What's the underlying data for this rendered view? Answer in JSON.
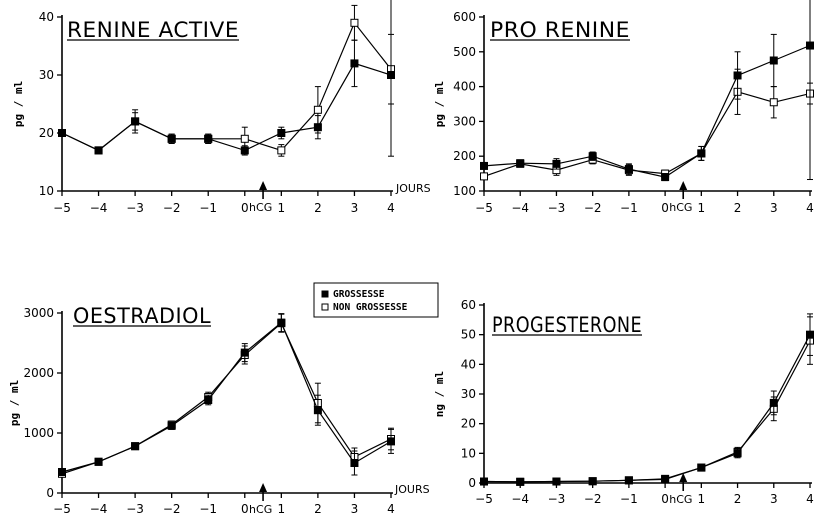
{
  "legend": {
    "entries": [
      {
        "label": "GROSSESSE",
        "marker": "filled-square"
      },
      {
        "label": "NON GROSSESSE",
        "marker": "open-square"
      }
    ]
  },
  "chart_data": [
    {
      "type": "line",
      "title": "RENINE ACTIVE",
      "ylabel": "pg / ml",
      "xlabel": "JOURS",
      "marker_label": "hCG",
      "marker_x": 0.5,
      "x": [
        -5,
        -4,
        -3,
        -2,
        -1,
        0,
        1,
        2,
        3,
        4
      ],
      "xticks": [
        -5,
        -4,
        -3,
        -2,
        -1,
        0,
        1,
        2,
        3,
        4
      ],
      "yticks": [
        10,
        20,
        30,
        40
      ],
      "ylim": [
        10,
        40
      ],
      "xlim": [
        -5,
        4
      ],
      "series": [
        {
          "name": "GROSSESSE",
          "marker": "filled",
          "values": [
            20,
            17,
            22,
            19,
            19,
            17,
            20,
            21,
            32,
            30
          ],
          "errors": [
            0,
            0,
            1.5,
            0.8,
            0.8,
            0.8,
            1,
            2,
            4,
            14
          ]
        },
        {
          "name": "NON GROSSESSE",
          "marker": "open",
          "values": [
            20,
            17,
            22,
            19,
            19,
            19,
            17,
            24,
            39,
            31
          ],
          "errors": [
            0,
            0,
            2,
            0.8,
            0.8,
            2,
            1,
            4,
            3,
            6
          ]
        }
      ]
    },
    {
      "type": "line",
      "title": "PRO RENINE",
      "ylabel": "pg / ml",
      "xlabel": "",
      "marker_label": "hCG",
      "marker_x": 0.5,
      "x": [
        -5,
        -4,
        -3,
        -2,
        -1,
        0,
        1,
        2,
        3,
        4
      ],
      "xticks": [
        -5,
        -4,
        -3,
        -2,
        -1,
        0,
        1,
        2,
        3,
        4
      ],
      "yticks": [
        100,
        200,
        300,
        400,
        500,
        600
      ],
      "ylim": [
        100,
        600
      ],
      "xlim": [
        -5,
        4
      ],
      "series": [
        {
          "name": "GROSSESSE",
          "marker": "filled",
          "values": [
            172,
            180,
            178,
            200,
            163,
            140,
            208,
            432,
            475,
            518
          ],
          "errors": [
            0,
            8,
            15,
            12,
            15,
            10,
            20,
            68,
            75,
            385
          ]
        },
        {
          "name": "NON GROSSESSE",
          "marker": "open",
          "values": [
            142,
            178,
            160,
            190,
            160,
            150,
            208,
            385,
            355,
            380
          ],
          "errors": [
            0,
            8,
            15,
            12,
            15,
            10,
            20,
            65,
            45,
            30
          ]
        }
      ]
    },
    {
      "type": "line",
      "title": "OESTRADIOL",
      "ylabel": "pg / ml",
      "xlabel": "JOURS",
      "marker_label": "hCG",
      "marker_x": 0.5,
      "x": [
        -5,
        -4,
        -3,
        -2,
        -1,
        0,
        1,
        2,
        3,
        4
      ],
      "xticks": [
        -5,
        -4,
        -3,
        -2,
        -1,
        0,
        1,
        2,
        3,
        4
      ],
      "yticks": [
        0,
        1000,
        2000,
        3000
      ],
      "ylim": [
        0,
        3000
      ],
      "xlim": [
        -5,
        4
      ],
      "series": [
        {
          "name": "GROSSESSE",
          "marker": "filled",
          "values": [
            350,
            520,
            780,
            1120,
            1550,
            2340,
            2840,
            1380,
            500,
            860
          ],
          "errors": [
            50,
            30,
            30,
            60,
            80,
            150,
            150,
            250,
            200,
            200
          ]
        },
        {
          "name": "NON GROSSESSE",
          "marker": "open",
          "values": [
            320,
            520,
            780,
            1140,
            1600,
            2300,
            2830,
            1500,
            600,
            900
          ],
          "errors": [
            50,
            30,
            30,
            60,
            80,
            150,
            150,
            330,
            150,
            180
          ]
        }
      ]
    },
    {
      "type": "line",
      "title": "PROGESTERONE",
      "ylabel": "ng / ml",
      "xlabel": "",
      "marker_label": "hCG",
      "marker_x": 0.5,
      "x": [
        -5,
        -4,
        -3,
        -2,
        -1,
        0,
        1,
        2,
        3,
        4
      ],
      "xticks": [
        -5,
        -4,
        -3,
        -2,
        -1,
        0,
        1,
        2,
        3,
        4
      ],
      "yticks": [
        0,
        10,
        20,
        30,
        40,
        50,
        60
      ],
      "ylim": [
        0,
        60
      ],
      "xlim": [
        -5,
        4
      ],
      "series": [
        {
          "name": "GROSSESSE",
          "marker": "filled",
          "values": [
            0.5,
            0.4,
            0.5,
            0.6,
            0.9,
            1.2,
            5.2,
            10,
            27,
            50
          ],
          "errors": [
            0.3,
            0.3,
            0.3,
            0.3,
            0.4,
            0.4,
            0.5,
            1.5,
            4,
            7
          ]
        },
        {
          "name": "NON GROSSESSE",
          "marker": "open",
          "values": [
            0.5,
            0.4,
            0.5,
            0.6,
            0.9,
            1.4,
            5.2,
            10.5,
            25,
            48
          ],
          "errors": [
            0.3,
            0.3,
            0.3,
            0.3,
            0.4,
            0.4,
            0.5,
            1.5,
            4,
            8
          ]
        }
      ]
    }
  ]
}
